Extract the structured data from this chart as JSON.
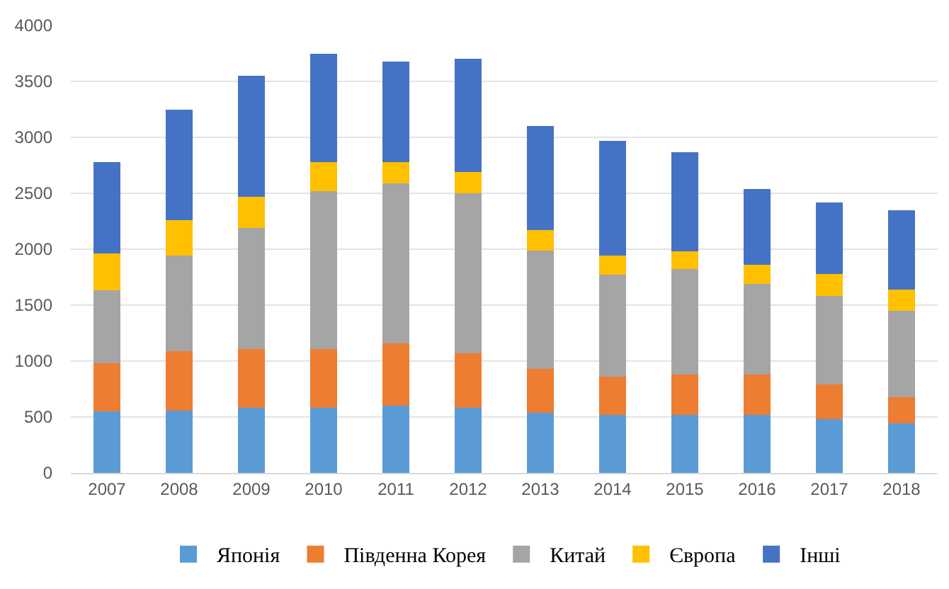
{
  "chart_data": {
    "type": "bar",
    "stacked": true,
    "categories": [
      "2007",
      "2008",
      "2009",
      "2010",
      "2011",
      "2012",
      "2013",
      "2014",
      "2015",
      "2016",
      "2017",
      "2018"
    ],
    "series": [
      {
        "name": "Японія",
        "color": "#5b9bd5",
        "values": [
          550,
          560,
          580,
          580,
          600,
          580,
          540,
          520,
          520,
          520,
          480,
          440
        ]
      },
      {
        "name": "Південна Корея",
        "color": "#ed7d31",
        "values": [
          430,
          530,
          530,
          530,
          560,
          490,
          390,
          340,
          360,
          360,
          310,
          240
        ]
      },
      {
        "name": "Китай",
        "color": "#a5a5a5",
        "values": [
          650,
          850,
          1080,
          1410,
          1430,
          1430,
          1060,
          910,
          940,
          810,
          790,
          770
        ]
      },
      {
        "name": "Європа",
        "color": "#ffc000",
        "values": [
          330,
          320,
          280,
          260,
          190,
          190,
          180,
          170,
          160,
          170,
          200,
          190
        ]
      },
      {
        "name": "Інші",
        "color": "#4472c4",
        "values": [
          820,
          990,
          1080,
          970,
          900,
          1010,
          930,
          1030,
          890,
          680,
          640,
          710
        ]
      }
    ],
    "ylim": [
      0,
      4000
    ],
    "yticks": [
      0,
      500,
      1000,
      1500,
      2000,
      2500,
      3000,
      3500,
      4000
    ],
    "grid": "y",
    "legend": "bottom"
  }
}
